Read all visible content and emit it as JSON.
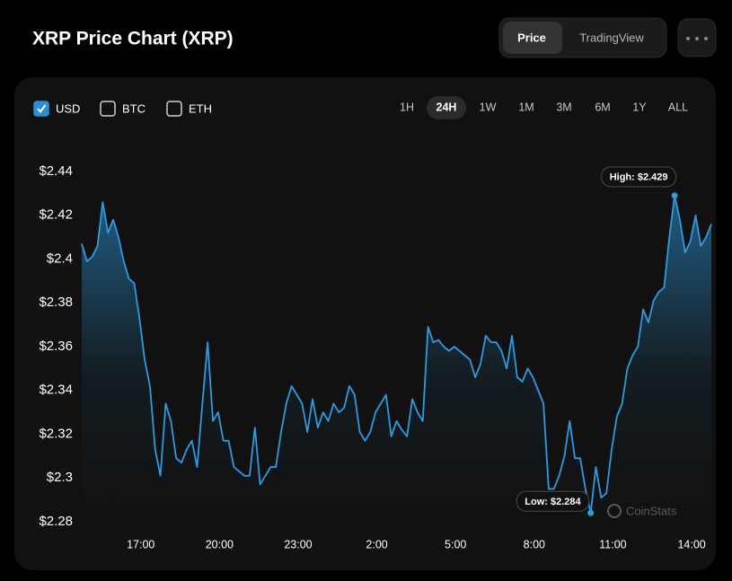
{
  "header": {
    "title": "XRP Price Chart (XRP)",
    "tabs": [
      {
        "label": "Price",
        "active": true
      },
      {
        "label": "TradingView",
        "active": false
      }
    ]
  },
  "currencies": [
    {
      "label": "USD",
      "checked": true
    },
    {
      "label": "BTC",
      "checked": false
    },
    {
      "label": "ETH",
      "checked": false
    }
  ],
  "timeframes": [
    {
      "label": "1H",
      "active": false
    },
    {
      "label": "24H",
      "active": true
    },
    {
      "label": "1W",
      "active": false
    },
    {
      "label": "1M",
      "active": false
    },
    {
      "label": "3M",
      "active": false
    },
    {
      "label": "6M",
      "active": false
    },
    {
      "label": "1Y",
      "active": false
    },
    {
      "label": "ALL",
      "active": false
    }
  ],
  "watermark": "CoinStats",
  "chart_data": {
    "type": "line",
    "x": [
      14.75,
      14.95,
      15.15,
      15.35,
      15.55,
      15.75,
      15.95,
      16.15,
      16.35,
      16.55,
      16.75,
      16.95,
      17.15,
      17.35,
      17.55,
      17.75,
      17.95,
      18.15,
      18.35,
      18.55,
      18.75,
      18.95,
      19.15,
      19.35,
      19.55,
      19.75,
      19.95,
      20.15,
      20.35,
      20.55,
      20.75,
      20.95,
      21.15,
      21.35,
      21.55,
      21.75,
      21.95,
      22.15,
      22.35,
      22.55,
      22.75,
      22.95,
      23.15,
      23.35,
      23.55,
      23.75,
      23.95,
      24.15,
      24.35,
      24.55,
      24.75,
      24.95,
      25.15,
      25.35,
      25.55,
      25.75,
      25.95,
      26.15,
      26.35,
      26.55,
      26.75,
      26.95,
      27.15,
      27.35,
      27.55,
      27.75,
      27.95,
      28.15,
      28.35,
      28.55,
      28.75,
      28.95,
      29.15,
      29.35,
      29.55,
      29.75,
      29.95,
      30.15,
      30.35,
      30.55,
      30.75,
      30.95,
      31.15,
      31.35,
      31.55,
      31.75,
      31.95,
      32.15,
      32.35,
      32.55,
      32.75,
      32.95,
      33.15,
      33.35,
      33.55,
      33.75,
      33.95,
      34.15,
      34.35,
      34.55,
      34.75,
      34.95,
      35.15,
      35.35,
      35.55,
      35.75,
      35.95,
      36.15,
      36.35,
      36.55,
      36.75,
      36.95,
      37.15,
      37.35,
      37.55,
      37.75,
      37.95,
      38.15,
      38.35,
      38.55,
      38.75
    ],
    "series": [
      {
        "name": "XRP",
        "color": "#2e9be0",
        "values": [
          2.407,
          2.399,
          2.401,
          2.406,
          2.426,
          2.412,
          2.418,
          2.41,
          2.399,
          2.391,
          2.389,
          2.373,
          2.354,
          2.342,
          2.313,
          2.301,
          2.334,
          2.326,
          2.309,
          2.307,
          2.313,
          2.317,
          2.305,
          2.334,
          2.362,
          2.326,
          2.33,
          2.317,
          2.317,
          2.305,
          2.303,
          2.301,
          2.301,
          2.323,
          2.297,
          2.301,
          2.305,
          2.305,
          2.321,
          2.334,
          2.342,
          2.338,
          2.334,
          2.321,
          2.336,
          2.323,
          2.33,
          2.326,
          2.334,
          2.33,
          2.332,
          2.342,
          2.338,
          2.321,
          2.317,
          2.321,
          2.33,
          2.334,
          2.338,
          2.319,
          2.326,
          2.322,
          2.319,
          2.336,
          2.33,
          2.326,
          2.369,
          2.362,
          2.363,
          2.36,
          2.358,
          2.36,
          2.358,
          2.356,
          2.354,
          2.346,
          2.352,
          2.365,
          2.362,
          2.362,
          2.358,
          2.35,
          2.365,
          2.346,
          2.344,
          2.35,
          2.346,
          2.34,
          2.334,
          2.295,
          2.295,
          2.301,
          2.31,
          2.326,
          2.309,
          2.309,
          2.295,
          2.284,
          2.305,
          2.291,
          2.293,
          2.313,
          2.328,
          2.334,
          2.35,
          2.356,
          2.36,
          2.377,
          2.371,
          2.381,
          2.385,
          2.387,
          2.41,
          2.429,
          2.418,
          2.403,
          2.408,
          2.42,
          2.406,
          2.41,
          2.416
        ]
      }
    ],
    "annotations": [
      {
        "label": "High: $2.429",
        "x": 37.35,
        "value": 2.429,
        "side": "top"
      },
      {
        "label": "Low: $2.284",
        "x": 34.15,
        "value": 2.284,
        "side": "left"
      }
    ],
    "xlim": [
      14.75,
      38.75
    ],
    "xticks": [
      {
        "value": 17,
        "label": "17:00"
      },
      {
        "value": 20,
        "label": "20:00"
      },
      {
        "value": 23,
        "label": "23:00"
      },
      {
        "value": 26,
        "label": "2:00"
      },
      {
        "value": 29,
        "label": "5:00"
      },
      {
        "value": 32,
        "label": "8:00"
      },
      {
        "value": 35,
        "label": "11:00"
      },
      {
        "value": 38,
        "label": "14:00"
      }
    ],
    "ylim": [
      2.28,
      2.44
    ],
    "yticks": [
      {
        "value": 2.28,
        "label": "$2.28"
      },
      {
        "value": 2.3,
        "label": "$2.3"
      },
      {
        "value": 2.32,
        "label": "$2.32"
      },
      {
        "value": 2.34,
        "label": "$2.34"
      },
      {
        "value": 2.36,
        "label": "$2.36"
      },
      {
        "value": 2.38,
        "label": "$2.38"
      },
      {
        "value": 2.4,
        "label": "$2.4"
      },
      {
        "value": 2.42,
        "label": "$2.42"
      },
      {
        "value": 2.44,
        "label": "$2.44"
      }
    ],
    "grid": false
  }
}
